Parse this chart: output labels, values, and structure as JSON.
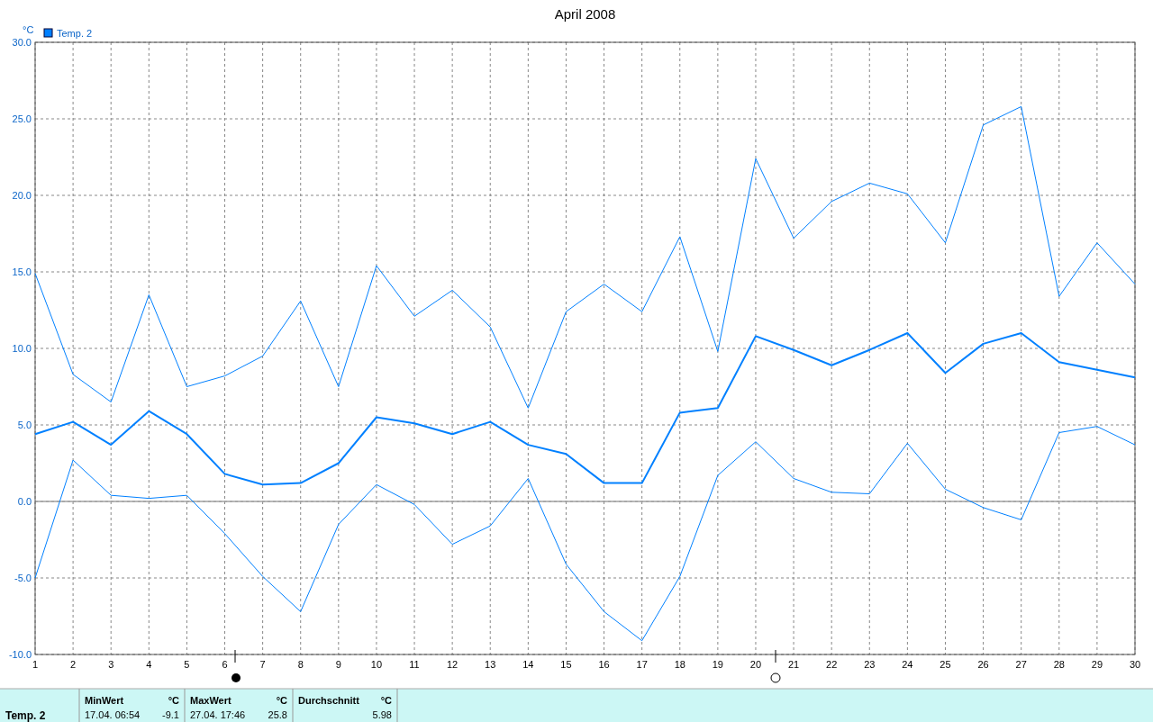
{
  "chart_data": {
    "type": "line",
    "title": "April 2008",
    "ylabel": "°C",
    "x": [
      1,
      2,
      3,
      4,
      5,
      6,
      7,
      8,
      9,
      10,
      11,
      12,
      13,
      14,
      15,
      16,
      17,
      18,
      19,
      20,
      21,
      22,
      23,
      24,
      25,
      26,
      27,
      28,
      29,
      30
    ],
    "xlim": [
      1,
      30
    ],
    "xticks": [
      1,
      2,
      3,
      4,
      5,
      6,
      7,
      8,
      9,
      10,
      11,
      12,
      13,
      14,
      15,
      16,
      17,
      18,
      19,
      20,
      21,
      22,
      23,
      24,
      25,
      26,
      27,
      28,
      29,
      30
    ],
    "ylim": [
      -10,
      30
    ],
    "yticks": [
      {
        "value": -10,
        "label": "-10.0"
      },
      {
        "value": -5,
        "label": "-5.0"
      },
      {
        "value": 0,
        "label": "0.0"
      },
      {
        "value": 5,
        "label": "5.0"
      },
      {
        "value": 10,
        "label": "10.0"
      },
      {
        "value": 15,
        "label": "15.0"
      },
      {
        "value": 20,
        "label": "20.0"
      },
      {
        "value": 25,
        "label": "25.0"
      },
      {
        "value": 30,
        "label": "30.0"
      }
    ],
    "grid": true,
    "legend": "top left",
    "line_style": "solid",
    "ref_lines": [
      {
        "axis": "y",
        "value": 0,
        "color": "#a0a0a0"
      }
    ],
    "series": [
      {
        "color": "#0080ff",
        "values": [
          14.9,
          8.3,
          6.5,
          13.5,
          7.5,
          8.2,
          9.5,
          13.1,
          7.5,
          15.4,
          12.1,
          13.8,
          11.4,
          6.1,
          12.4,
          14.2,
          12.4,
          17.3,
          9.8,
          22.4,
          17.2,
          19.6,
          20.8,
          20.1,
          16.9,
          24.6,
          25.8,
          13.4,
          16.9,
          14.2
        ]
      },
      {
        "name": "Temp. 2",
        "color": "#0080ff",
        "values": [
          4.4,
          5.2,
          3.7,
          5.9,
          4.4,
          1.8,
          1.1,
          1.2,
          2.5,
          5.5,
          5.1,
          4.4,
          5.2,
          3.7,
          3.1,
          1.2,
          1.2,
          5.8,
          6.1,
          10.8,
          9.9,
          8.9,
          9.9,
          11.0,
          8.4,
          10.3,
          11.0,
          9.1,
          8.6,
          8.1
        ]
      },
      {
        "color": "#0080ff",
        "values": [
          -5.0,
          2.7,
          0.4,
          0.2,
          0.4,
          -2.1,
          -4.9,
          -7.2,
          -1.5,
          1.1,
          -0.2,
          -2.8,
          -1.6,
          1.5,
          -4.1,
          -7.2,
          -9.1,
          -4.9,
          1.7,
          3.9,
          1.5,
          0.6,
          0.5,
          3.8,
          0.8,
          -0.4,
          -1.2,
          4.5,
          4.9,
          3.7
        ]
      }
    ],
    "annotations": [
      "Temp. 2",
      "MinWert",
      "°C",
      "17.04.  06:54",
      "-9.1",
      "MaxWert",
      "°C",
      "27.04.  17:46",
      "25.8",
      "Durchschnitt",
      "°C",
      "5.98"
    ]
  }
}
